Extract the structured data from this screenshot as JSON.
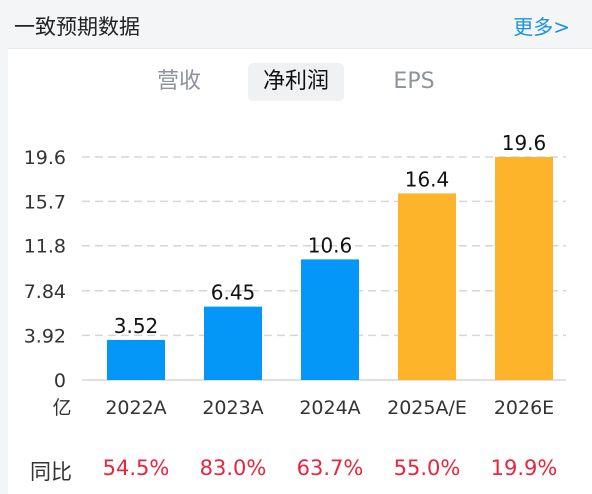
{
  "header": {
    "title": "一致预期数据",
    "more": "更多>"
  },
  "tabs": [
    {
      "label": "营收",
      "active": false
    },
    {
      "label": "净利润",
      "active": true
    },
    {
      "label": "EPS",
      "active": false
    }
  ],
  "chart_data": {
    "type": "bar",
    "categories": [
      "2022A",
      "2023A",
      "2024A",
      "2025A/E",
      "2026E"
    ],
    "values": [
      3.52,
      6.45,
      10.6,
      16.4,
      19.6
    ],
    "value_labels": [
      "3.52",
      "6.45",
      "10.6",
      "16.4",
      "19.6"
    ],
    "bar_colors": [
      "#0497f7",
      "#0497f7",
      "#0497f7",
      "#fdb42b",
      "#fdb42b"
    ],
    "yticks": [
      0,
      3.92,
      7.84,
      11.8,
      15.7,
      19.6
    ],
    "ytick_labels": [
      "0",
      "3.92",
      "7.84",
      "11.8",
      "15.7",
      "19.6"
    ],
    "ylim": [
      0,
      19.6
    ],
    "unit": "亿",
    "grid": true
  },
  "yoy": {
    "label": "同比",
    "values": [
      "54.5%",
      "83.0%",
      "63.7%",
      "55.0%",
      "19.9%"
    ],
    "color": "#e8253c"
  }
}
